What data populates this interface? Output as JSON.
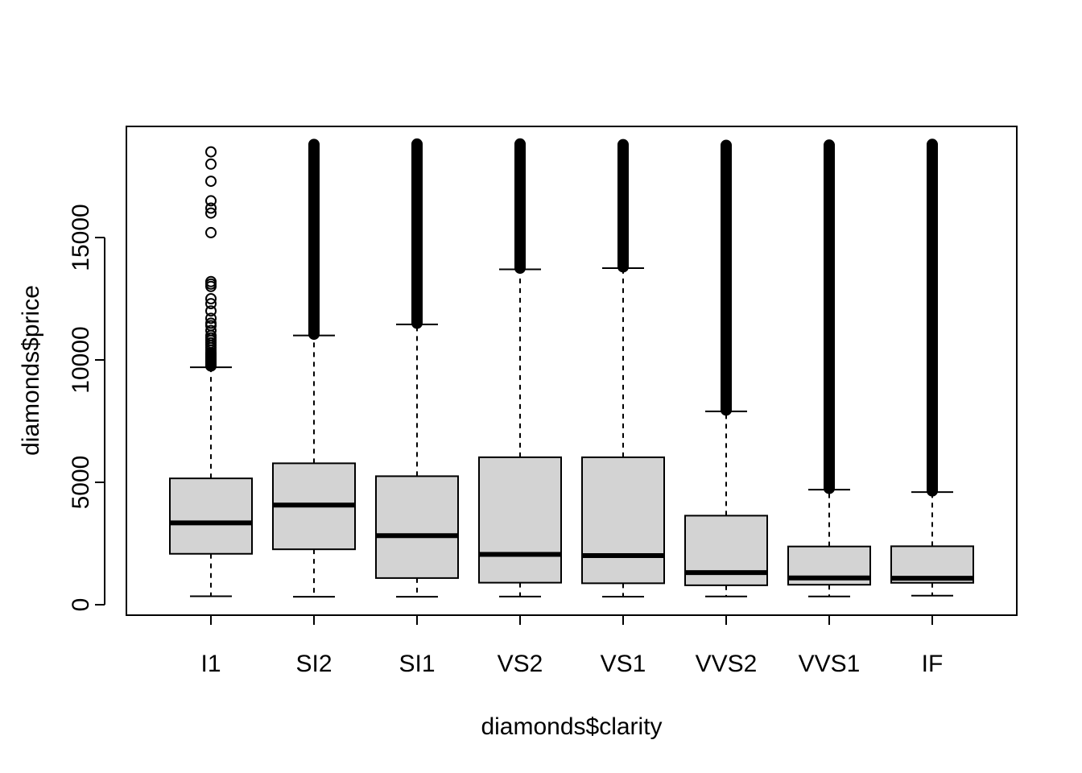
{
  "chart_data": {
    "type": "boxplot",
    "xlabel": "diamonds$clarity",
    "ylabel": "diamonds$price",
    "ylim": [
      0,
      19000
    ],
    "yticks": [
      0,
      5000,
      10000,
      15000
    ],
    "categories": [
      "I1",
      "SI2",
      "SI1",
      "VS2",
      "VS1",
      "VVS2",
      "VVS1",
      "IF"
    ],
    "boxes": [
      {
        "category": "I1",
        "min": 345,
        "q1": 2080,
        "median": 3344,
        "q3": 5161,
        "whisker_high": 9700,
        "outliers": [
          9750,
          9800,
          9850,
          9900,
          9950,
          10000,
          10050,
          10100,
          10150,
          10200,
          10250,
          10300,
          10400,
          10500,
          10600,
          10700,
          10800,
          10900,
          11000,
          11200,
          11400,
          11500,
          11700,
          12000,
          12300,
          12500,
          13000,
          13100,
          13200,
          15200,
          16000,
          16200,
          16500,
          17300,
          18000,
          18500
        ]
      },
      {
        "category": "SI2",
        "min": 326,
        "q1": 2264,
        "median": 4072,
        "q3": 5777,
        "whisker_high": 11000,
        "outlier_range": [
          11050,
          18804
        ]
      },
      {
        "category": "SI1",
        "min": 326,
        "q1": 1089,
        "median": 2822,
        "q3": 5250,
        "whisker_high": 11450,
        "outlier_range": [
          11500,
          18818
        ]
      },
      {
        "category": "VS2",
        "min": 334,
        "q1": 900,
        "median": 2054,
        "q3": 6024,
        "whisker_high": 13700,
        "outlier_range": [
          13750,
          18823
        ]
      },
      {
        "category": "VS1",
        "min": 327,
        "q1": 876,
        "median": 2005,
        "q3": 6023,
        "whisker_high": 13750,
        "outlier_range": [
          13800,
          18795
        ]
      },
      {
        "category": "VVS2",
        "min": 336,
        "q1": 794,
        "median": 1311,
        "q3": 3638,
        "whisker_high": 7900,
        "outlier_range": [
          7950,
          18768
        ]
      },
      {
        "category": "VVS1",
        "min": 336,
        "q1": 816,
        "median": 1093,
        "q3": 2379,
        "whisker_high": 4700,
        "outlier_range": [
          4750,
          18777
        ]
      },
      {
        "category": "IF",
        "min": 369,
        "q1": 895,
        "median": 1080,
        "q3": 2388,
        "whisker_high": 4600,
        "outlier_range": [
          4650,
          18806
        ]
      }
    ],
    "box_fill": "#d3d3d3",
    "grid": false,
    "legend": "none"
  }
}
